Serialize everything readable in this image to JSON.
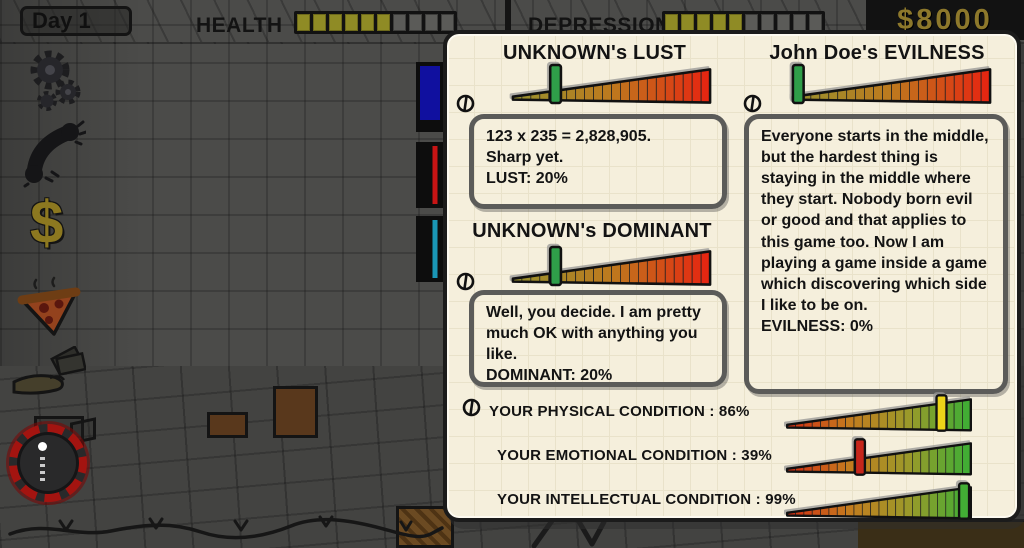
{
  "hud": {
    "day_label": "Day 1",
    "health": {
      "label": "HEALTH",
      "segments_total": 10,
      "segments_filled": 6
    },
    "depression": {
      "label": "DEPRESSION",
      "segments_total": 10,
      "segments_filled": 5
    },
    "money": "$8000"
  },
  "sidebar": {
    "icons": [
      "gears",
      "phone",
      "dollar",
      "pizza",
      "hand-money",
      "blade-button"
    ],
    "dollar_glyph": "$"
  },
  "panel": {
    "sections": {
      "lust": {
        "title": "UNKNOWN's LUST",
        "value_percent": 20,
        "handle_color": "#2f9e49",
        "text": "123 x 235 = 2,828,905.\nSharp yet.\nLUST: 20%"
      },
      "dominant": {
        "title": "UNKNOWN's DOMINANT",
        "value_percent": 20,
        "handle_color": "#2f9e49",
        "text": "Well, you decide. I am pretty much OK with anything you like.\nDOMINANT: 20%"
      },
      "evilness": {
        "title": "John Doe's EVILNESS",
        "value_percent": 0,
        "handle_color": "#2f9e49",
        "text": "Everyone starts in the middle, but the hardest thing is staying in the middle where they start. Nobody born evil or good and that applies to this game too. Now I am playing a game inside a game which discovering which side I like to be on.\nEVILNESS: 0%"
      }
    },
    "conditions": [
      {
        "label": "YOUR PHYSICAL CONDITION : 86%",
        "value_percent": 86,
        "handle_color": "#ecd419"
      },
      {
        "label": "YOUR EMOTIONAL CONDITION : 39%",
        "value_percent": 39,
        "handle_color": "#c6261b"
      },
      {
        "label": "YOUR INTELLECTUAL CONDITION : 99%",
        "value_percent": 99,
        "handle_color": "#42ad35"
      }
    ]
  },
  "colors": {
    "ramps": {
      "trait": [
        "#97912e",
        "#bd7a1e",
        "#e72310"
      ],
      "condition": [
        "#d22a12",
        "#c47b1e",
        "#9a9a2a",
        "#3cae35"
      ]
    },
    "seg_filled": "#8f8b25",
    "money_text": "#8d782b",
    "panel_bg": "#f5efdc"
  }
}
